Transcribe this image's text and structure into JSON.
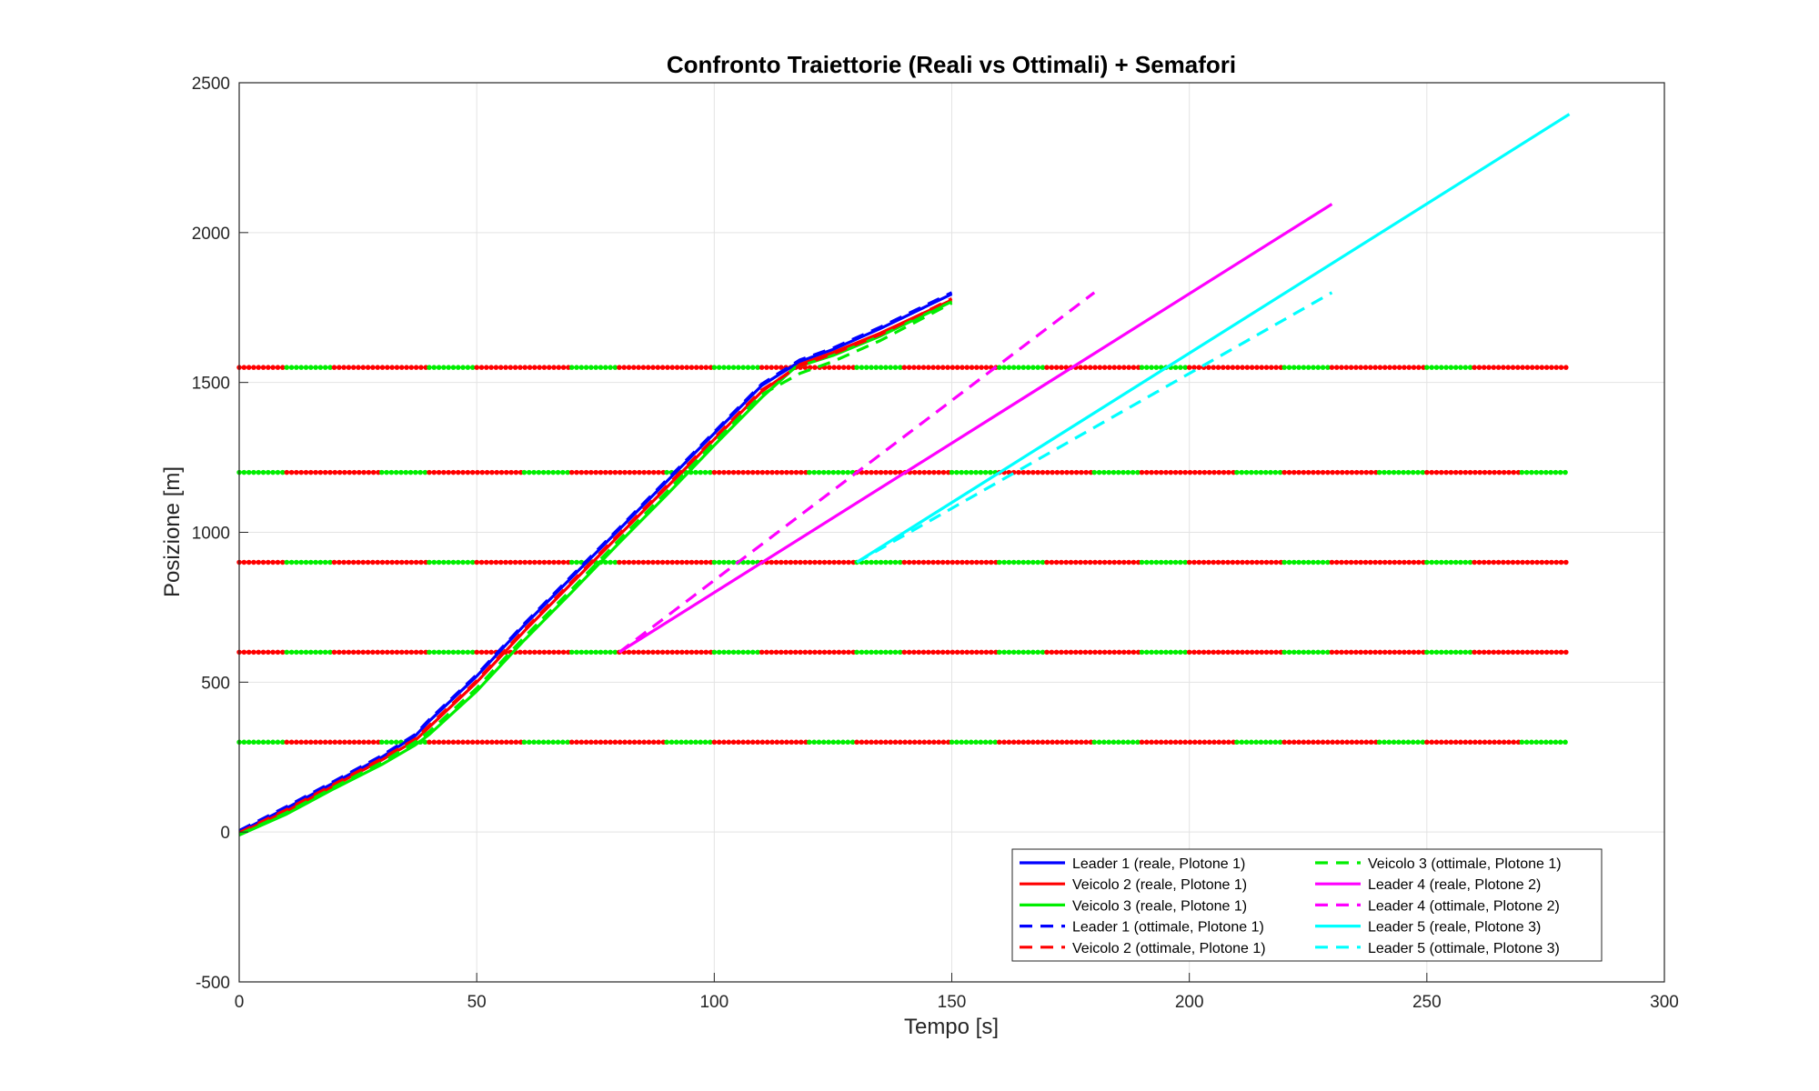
{
  "chart_data": {
    "type": "line",
    "title": "Confronto Traiettorie (Reali vs Ottimali) + Semafori",
    "xlabel": "Tempo [s]",
    "ylabel": "Posizione [m]",
    "xlim": [
      0,
      300
    ],
    "ylim": [
      -500,
      2500
    ],
    "xticks": [
      0,
      50,
      100,
      150,
      200,
      250,
      300
    ],
    "yticks": [
      -500,
      0,
      500,
      1000,
      1500,
      2000,
      2500
    ],
    "xtick_labels": [
      "0",
      "50",
      "100",
      "150",
      "200",
      "250",
      "300"
    ],
    "ytick_labels": [
      "-500",
      "0",
      "500",
      "1000",
      "1500",
      "2000",
      "2500"
    ],
    "grid": true,
    "legend_position": "bottom-right",
    "series": [
      {
        "name": "Leader 1 (reale, Plotone 1)",
        "color": "#0000ff",
        "style": "solid",
        "points": [
          [
            0,
            0
          ],
          [
            10,
            80
          ],
          [
            20,
            165
          ],
          [
            30,
            250
          ],
          [
            37,
            320
          ],
          [
            40,
            370
          ],
          [
            50,
            520
          ],
          [
            60,
            690
          ],
          [
            70,
            850
          ],
          [
            80,
            1010
          ],
          [
            90,
            1170
          ],
          [
            100,
            1330
          ],
          [
            110,
            1490
          ],
          [
            118,
            1570
          ],
          [
            125,
            1610
          ],
          [
            135,
            1680
          ],
          [
            150,
            1795
          ]
        ]
      },
      {
        "name": "Veicolo 2 (reale, Plotone 1)",
        "color": "#ff0000",
        "style": "solid",
        "points": [
          [
            0,
            -5
          ],
          [
            10,
            70
          ],
          [
            20,
            155
          ],
          [
            30,
            240
          ],
          [
            37,
            305
          ],
          [
            40,
            350
          ],
          [
            50,
            500
          ],
          [
            60,
            670
          ],
          [
            70,
            830
          ],
          [
            80,
            990
          ],
          [
            90,
            1150
          ],
          [
            100,
            1310
          ],
          [
            110,
            1470
          ],
          [
            118,
            1560
          ],
          [
            125,
            1600
          ],
          [
            135,
            1665
          ],
          [
            150,
            1775
          ]
        ]
      },
      {
        "name": "Veicolo 3 (reale, Plotone 1)",
        "color": "#00ee00",
        "style": "solid",
        "points": [
          [
            0,
            -10
          ],
          [
            10,
            60
          ],
          [
            20,
            145
          ],
          [
            30,
            225
          ],
          [
            37,
            290
          ],
          [
            40,
            325
          ],
          [
            50,
            470
          ],
          [
            60,
            640
          ],
          [
            70,
            800
          ],
          [
            80,
            965
          ],
          [
            90,
            1125
          ],
          [
            100,
            1290
          ],
          [
            110,
            1450
          ],
          [
            117,
            1550
          ],
          [
            125,
            1590
          ],
          [
            135,
            1655
          ],
          [
            150,
            1770
          ]
        ]
      },
      {
        "name": "Leader 1 (ottimale, Plotone 1)",
        "color": "#0000ff",
        "style": "dashed",
        "points": [
          [
            0,
            5
          ],
          [
            10,
            85
          ],
          [
            20,
            170
          ],
          [
            30,
            255
          ],
          [
            37,
            325
          ],
          [
            40,
            375
          ],
          [
            50,
            525
          ],
          [
            60,
            695
          ],
          [
            70,
            855
          ],
          [
            80,
            1015
          ],
          [
            90,
            1175
          ],
          [
            100,
            1335
          ],
          [
            110,
            1495
          ],
          [
            118,
            1575
          ],
          [
            125,
            1615
          ],
          [
            135,
            1685
          ],
          [
            150,
            1800
          ]
        ]
      },
      {
        "name": "Veicolo 2 (ottimale, Plotone 1)",
        "color": "#ff0000",
        "style": "dashed",
        "points": [
          [
            0,
            -2
          ],
          [
            10,
            75
          ],
          [
            20,
            160
          ],
          [
            30,
            245
          ],
          [
            37,
            310
          ],
          [
            40,
            355
          ],
          [
            50,
            505
          ],
          [
            60,
            675
          ],
          [
            70,
            835
          ],
          [
            80,
            995
          ],
          [
            90,
            1155
          ],
          [
            100,
            1315
          ],
          [
            110,
            1475
          ],
          [
            118,
            1555
          ],
          [
            125,
            1595
          ],
          [
            135,
            1660
          ],
          [
            150,
            1780
          ]
        ]
      },
      {
        "name": "Veicolo 3 (ottimale, Plotone 1)",
        "color": "#00ee00",
        "style": "dashed",
        "points": [
          [
            0,
            -8
          ],
          [
            10,
            65
          ],
          [
            20,
            150
          ],
          [
            30,
            232
          ],
          [
            37,
            300
          ],
          [
            40,
            335
          ],
          [
            50,
            480
          ],
          [
            60,
            650
          ],
          [
            70,
            810
          ],
          [
            80,
            975
          ],
          [
            90,
            1135
          ],
          [
            100,
            1300
          ],
          [
            110,
            1460
          ],
          [
            118,
            1530
          ],
          [
            125,
            1570
          ],
          [
            135,
            1640
          ],
          [
            150,
            1765
          ]
        ]
      },
      {
        "name": "Leader 4 (reale, Plotone 2)",
        "color": "#ff00ff",
        "style": "solid",
        "points": [
          [
            80,
            600
          ],
          [
            230,
            2095
          ]
        ]
      },
      {
        "name": "Leader 4 (ottimale, Plotone 2)",
        "color": "#ff00ff",
        "style": "dashed",
        "points": [
          [
            80,
            600
          ],
          [
            180,
            1800
          ]
        ]
      },
      {
        "name": "Leader 5 (reale, Plotone 3)",
        "color": "#00ffff",
        "style": "solid",
        "points": [
          [
            130,
            900
          ],
          [
            280,
            2395
          ]
        ]
      },
      {
        "name": "Leader 5 (ottimale, Plotone 3)",
        "color": "#00ffff",
        "style": "dashed",
        "points": [
          [
            130,
            900
          ],
          [
            230,
            1800
          ]
        ]
      }
    ],
    "traffic_lights": {
      "x_range": [
        0,
        280
      ],
      "red_color": "#ff0000",
      "green_color": "#00ee00",
      "lights": [
        {
          "position": 300,
          "segments": [
            [
              0,
              10,
              "green"
            ],
            [
              10,
              30,
              "red"
            ],
            [
              30,
              40,
              "green"
            ],
            [
              40,
              60,
              "red"
            ],
            [
              60,
              70,
              "green"
            ],
            [
              70,
              90,
              "red"
            ],
            [
              90,
              100,
              "green"
            ],
            [
              100,
              120,
              "red"
            ],
            [
              120,
              130,
              "green"
            ],
            [
              130,
              150,
              "red"
            ],
            [
              150,
              160,
              "green"
            ],
            [
              160,
              180,
              "red"
            ],
            [
              180,
              190,
              "green"
            ],
            [
              190,
              210,
              "red"
            ],
            [
              210,
              220,
              "green"
            ],
            [
              220,
              240,
              "red"
            ],
            [
              240,
              250,
              "green"
            ],
            [
              250,
              270,
              "red"
            ],
            [
              270,
              280,
              "green"
            ]
          ]
        },
        {
          "position": 600,
          "segments": [
            [
              0,
              10,
              "red"
            ],
            [
              10,
              20,
              "green"
            ],
            [
              20,
              40,
              "red"
            ],
            [
              40,
              50,
              "green"
            ],
            [
              50,
              70,
              "red"
            ],
            [
              70,
              80,
              "green"
            ],
            [
              80,
              100,
              "red"
            ],
            [
              100,
              110,
              "green"
            ],
            [
              110,
              130,
              "red"
            ],
            [
              130,
              140,
              "green"
            ],
            [
              140,
              160,
              "red"
            ],
            [
              160,
              170,
              "green"
            ],
            [
              170,
              190,
              "red"
            ],
            [
              190,
              200,
              "green"
            ],
            [
              200,
              220,
              "red"
            ],
            [
              220,
              230,
              "green"
            ],
            [
              230,
              250,
              "red"
            ],
            [
              250,
              260,
              "green"
            ],
            [
              260,
              280,
              "red"
            ]
          ]
        },
        {
          "position": 900,
          "segments": [
            [
              0,
              10,
              "red"
            ],
            [
              10,
              20,
              "green"
            ],
            [
              20,
              40,
              "red"
            ],
            [
              40,
              50,
              "green"
            ],
            [
              50,
              70,
              "red"
            ],
            [
              70,
              80,
              "green"
            ],
            [
              80,
              100,
              "red"
            ],
            [
              100,
              110,
              "green"
            ],
            [
              110,
              130,
              "red"
            ],
            [
              130,
              140,
              "green"
            ],
            [
              140,
              160,
              "red"
            ],
            [
              160,
              170,
              "green"
            ],
            [
              170,
              190,
              "red"
            ],
            [
              190,
              200,
              "green"
            ],
            [
              200,
              220,
              "red"
            ],
            [
              220,
              230,
              "green"
            ],
            [
              230,
              250,
              "red"
            ],
            [
              250,
              260,
              "green"
            ],
            [
              260,
              280,
              "red"
            ]
          ]
        },
        {
          "position": 1200,
          "segments": [
            [
              0,
              10,
              "green"
            ],
            [
              10,
              30,
              "red"
            ],
            [
              30,
              40,
              "green"
            ],
            [
              40,
              60,
              "red"
            ],
            [
              60,
              70,
              "green"
            ],
            [
              70,
              90,
              "red"
            ],
            [
              90,
              100,
              "green"
            ],
            [
              100,
              120,
              "red"
            ],
            [
              120,
              130,
              "green"
            ],
            [
              130,
              150,
              "red"
            ],
            [
              150,
              160,
              "green"
            ],
            [
              160,
              180,
              "red"
            ],
            [
              180,
              190,
              "green"
            ],
            [
              190,
              210,
              "red"
            ],
            [
              210,
              220,
              "green"
            ],
            [
              220,
              240,
              "red"
            ],
            [
              240,
              250,
              "green"
            ],
            [
              250,
              270,
              "red"
            ],
            [
              270,
              280,
              "green"
            ]
          ]
        },
        {
          "position": 1550,
          "segments": [
            [
              0,
              10,
              "red"
            ],
            [
              10,
              20,
              "green"
            ],
            [
              20,
              40,
              "red"
            ],
            [
              40,
              50,
              "green"
            ],
            [
              50,
              70,
              "red"
            ],
            [
              70,
              80,
              "green"
            ],
            [
              80,
              100,
              "red"
            ],
            [
              100,
              110,
              "green"
            ],
            [
              110,
              130,
              "red"
            ],
            [
              130,
              140,
              "green"
            ],
            [
              140,
              160,
              "red"
            ],
            [
              160,
              170,
              "green"
            ],
            [
              170,
              190,
              "red"
            ],
            [
              190,
              200,
              "green"
            ],
            [
              200,
              220,
              "red"
            ],
            [
              220,
              230,
              "green"
            ],
            [
              230,
              250,
              "red"
            ],
            [
              250,
              260,
              "green"
            ],
            [
              260,
              280,
              "red"
            ]
          ]
        }
      ]
    },
    "legend": {
      "entries": [
        {
          "label": "Leader 1 (reale, Plotone 1)",
          "color": "#0000ff",
          "style": "solid"
        },
        {
          "label": "Veicolo 2 (reale, Plotone 1)",
          "color": "#ff0000",
          "style": "solid"
        },
        {
          "label": "Veicolo 3 (reale, Plotone 1)",
          "color": "#00ee00",
          "style": "solid"
        },
        {
          "label": "Leader 1 (ottimale, Plotone 1)",
          "color": "#0000ff",
          "style": "dashed"
        },
        {
          "label": "Veicolo 2 (ottimale, Plotone 1)",
          "color": "#ff0000",
          "style": "dashed"
        },
        {
          "label": "Veicolo 3 (ottimale, Plotone 1)",
          "color": "#00ee00",
          "style": "dashed"
        },
        {
          "label": "Leader 4 (reale, Plotone 2)",
          "color": "#ff00ff",
          "style": "solid"
        },
        {
          "label": "Leader 4 (ottimale, Plotone 2)",
          "color": "#ff00ff",
          "style": "dashed"
        },
        {
          "label": "Leader 5 (reale, Plotone 3)",
          "color": "#00ffff",
          "style": "solid"
        },
        {
          "label": "Leader 5 (ottimale, Plotone 3)",
          "color": "#00ffff",
          "style": "dashed"
        }
      ]
    }
  }
}
